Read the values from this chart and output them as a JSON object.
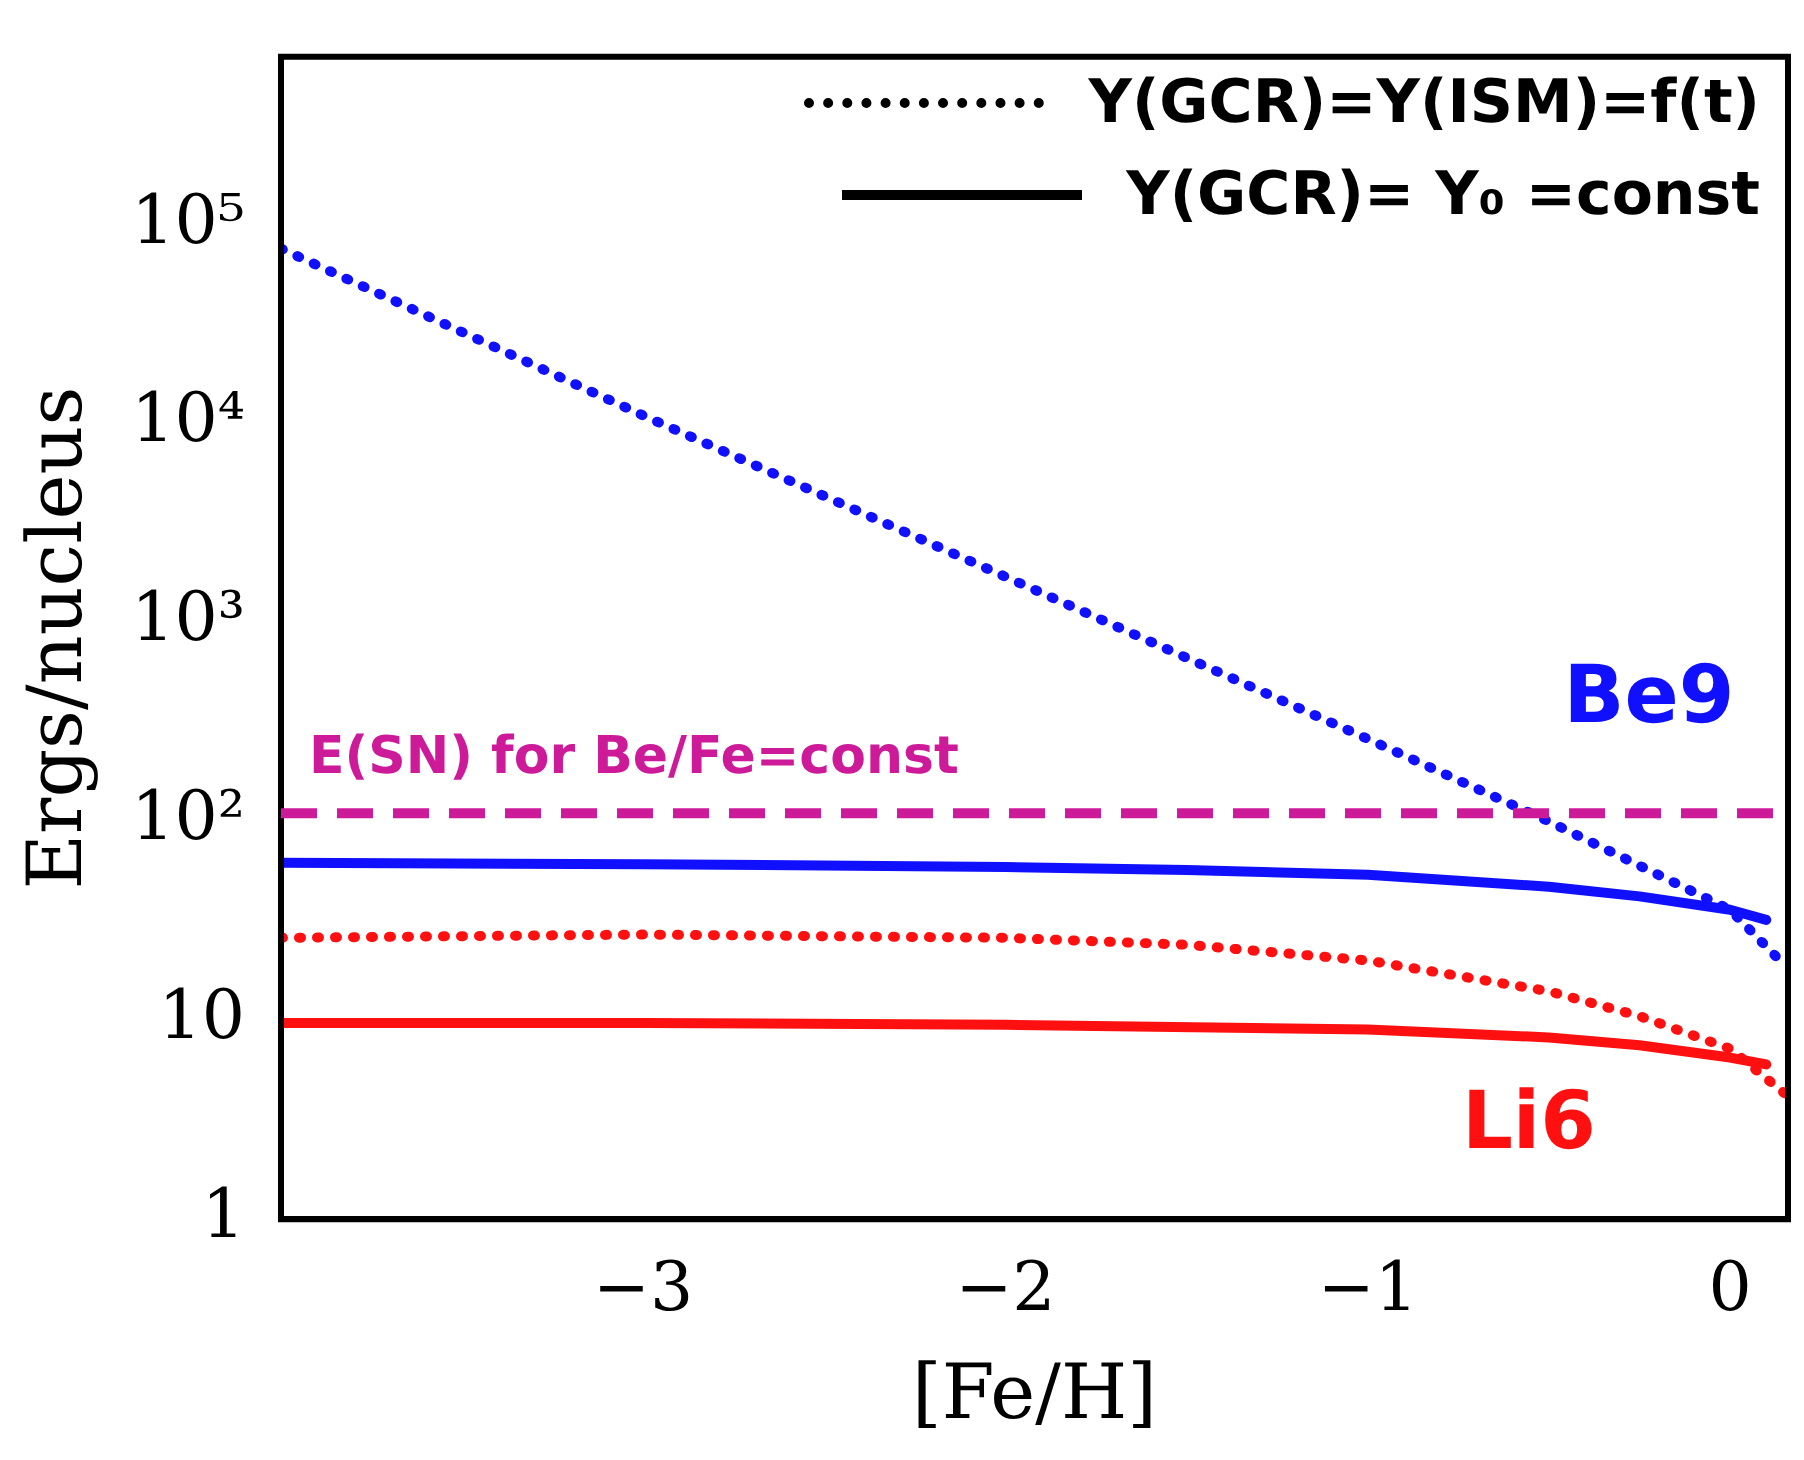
{
  "chart_data": {
    "type": "line",
    "xlabel": "[Fe/H]",
    "ylabel": "Ergs/nucleus",
    "log": "y",
    "xlim": [
      -4,
      0.16
    ],
    "xticks": [
      -3,
      -2,
      -1,
      0
    ],
    "ylim": [
      1,
      700000
    ],
    "yticks": [
      1,
      10,
      {
        "value": 100,
        "label": "10²"
      },
      {
        "value": 1000,
        "label": "10³"
      },
      {
        "value": 10000,
        "label": "10⁴"
      },
      {
        "value": 100000,
        "label": "10⁵"
      }
    ],
    "grid": false,
    "series": [
      {
        "name": "Be9",
        "color": "#1010ff",
        "line_style": "dotted",
        "x": [
          -4,
          -3,
          -2,
          -1,
          -0.5,
          0,
          0.15
        ],
        "values": [
          76000,
          11000,
          1700,
          260,
          100,
          36,
          19
        ]
      },
      {
        "color": "#1010ff",
        "line_style": "solid",
        "x": [
          -4,
          -3,
          -2,
          -1.5,
          -1,
          -0.5,
          -0.25,
          0,
          0.1
        ],
        "values": [
          62,
          61,
          59,
          57,
          54,
          47,
          42,
          36,
          32
        ]
      },
      {
        "color": "#ff1010",
        "line_style": "dotted",
        "x": [
          -4,
          -3,
          -2,
          -1.5,
          -1,
          -0.5,
          -0.25,
          0,
          0.15
        ],
        "values": [
          26,
          27,
          26,
          24,
          20,
          14,
          10.5,
          7.2,
          4.3
        ]
      },
      {
        "name": "Li6",
        "color": "#ff1010",
        "line_style": "solid",
        "x": [
          -4,
          -3,
          -2,
          -1,
          -0.5,
          -0.25,
          0,
          0.1
        ],
        "values": [
          9.7,
          9.7,
          9.5,
          9,
          8.2,
          7.5,
          6.5,
          6
        ]
      }
    ],
    "ref_lines": [
      {
        "axis": "y",
        "value": 110,
        "label": "E(SN) for Be/Fe=const",
        "color": "#cc1a99",
        "line_style": "dashed"
      }
    ],
    "annotations": [
      "Y(GCR)=Y(ISM)=f(t)",
      "Y(GCR)= Y₀ =const"
    ]
  }
}
